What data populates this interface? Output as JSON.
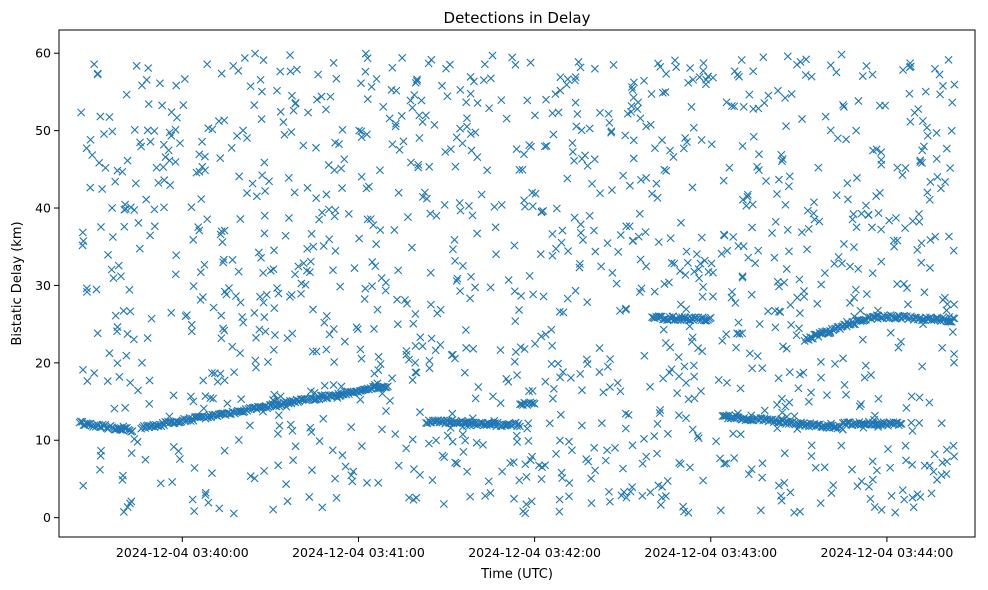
{
  "chart_data": {
    "type": "scatter",
    "title": "Detections in Delay",
    "xlabel": "Time (UTC)",
    "ylabel": "Bistatic Delay (km)",
    "x_start": "2024-12-04 03:39:25",
    "x_end": "2024-12-04 03:44:23",
    "xlim": [
      "2024-12-04 03:39:18",
      "2024-12-04 03:44:30"
    ],
    "ylim": [
      -2.5,
      63
    ],
    "x_ticks": [
      "2024-12-04 03:40:00",
      "2024-12-04 03:41:00",
      "2024-12-04 03:42:00",
      "2024-12-04 03:43:00",
      "2024-12-04 03:44:00"
    ],
    "y_ticks": [
      "0",
      "10",
      "20",
      "30",
      "40",
      "50",
      "60"
    ],
    "grid": false,
    "marker": "x",
    "color": "#1f77b4",
    "y_range": [
      0.5,
      60
    ],
    "noise_point_count": 1300,
    "tracks": [
      {
        "start": "2024-12-04 03:39:25",
        "end": "2024-12-04 03:39:43",
        "y_start": 12.2,
        "y_end": 11.3
      },
      {
        "start": "2024-12-04 03:39:46",
        "end": "2024-12-04 03:41:10",
        "y_start": 11.6,
        "y_end": 17.0
      },
      {
        "start": "2024-12-04 03:41:23",
        "end": "2024-12-04 03:41:38",
        "y_start": 12.4,
        "y_end": 12.4
      },
      {
        "start": "2024-12-04 03:41:38",
        "end": "2024-12-04 03:41:55",
        "y_start": 12.1,
        "y_end": 12.0
      },
      {
        "start": "2024-12-04 03:41:55",
        "end": "2024-12-04 03:42:00",
        "y_start": 14.7,
        "y_end": 14.7
      },
      {
        "start": "2024-12-04 03:42:40",
        "end": "2024-12-04 03:43:00",
        "y_start": 25.8,
        "y_end": 25.6
      },
      {
        "start": "2024-12-04 03:43:04",
        "end": "2024-12-04 03:43:45",
        "y_start": 13.1,
        "y_end": 11.6
      },
      {
        "start": "2024-12-04 03:43:45",
        "end": "2024-12-04 03:44:05",
        "y_start": 12.2,
        "y_end": 12.1
      },
      {
        "start": "2024-12-04 03:43:32",
        "end": "2024-12-04 03:43:57",
        "y_start": 23.0,
        "y_end": 26.2
      },
      {
        "start": "2024-12-04 03:43:58",
        "end": "2024-12-04 03:44:23",
        "y_start": 26.0,
        "y_end": 25.5
      }
    ]
  }
}
